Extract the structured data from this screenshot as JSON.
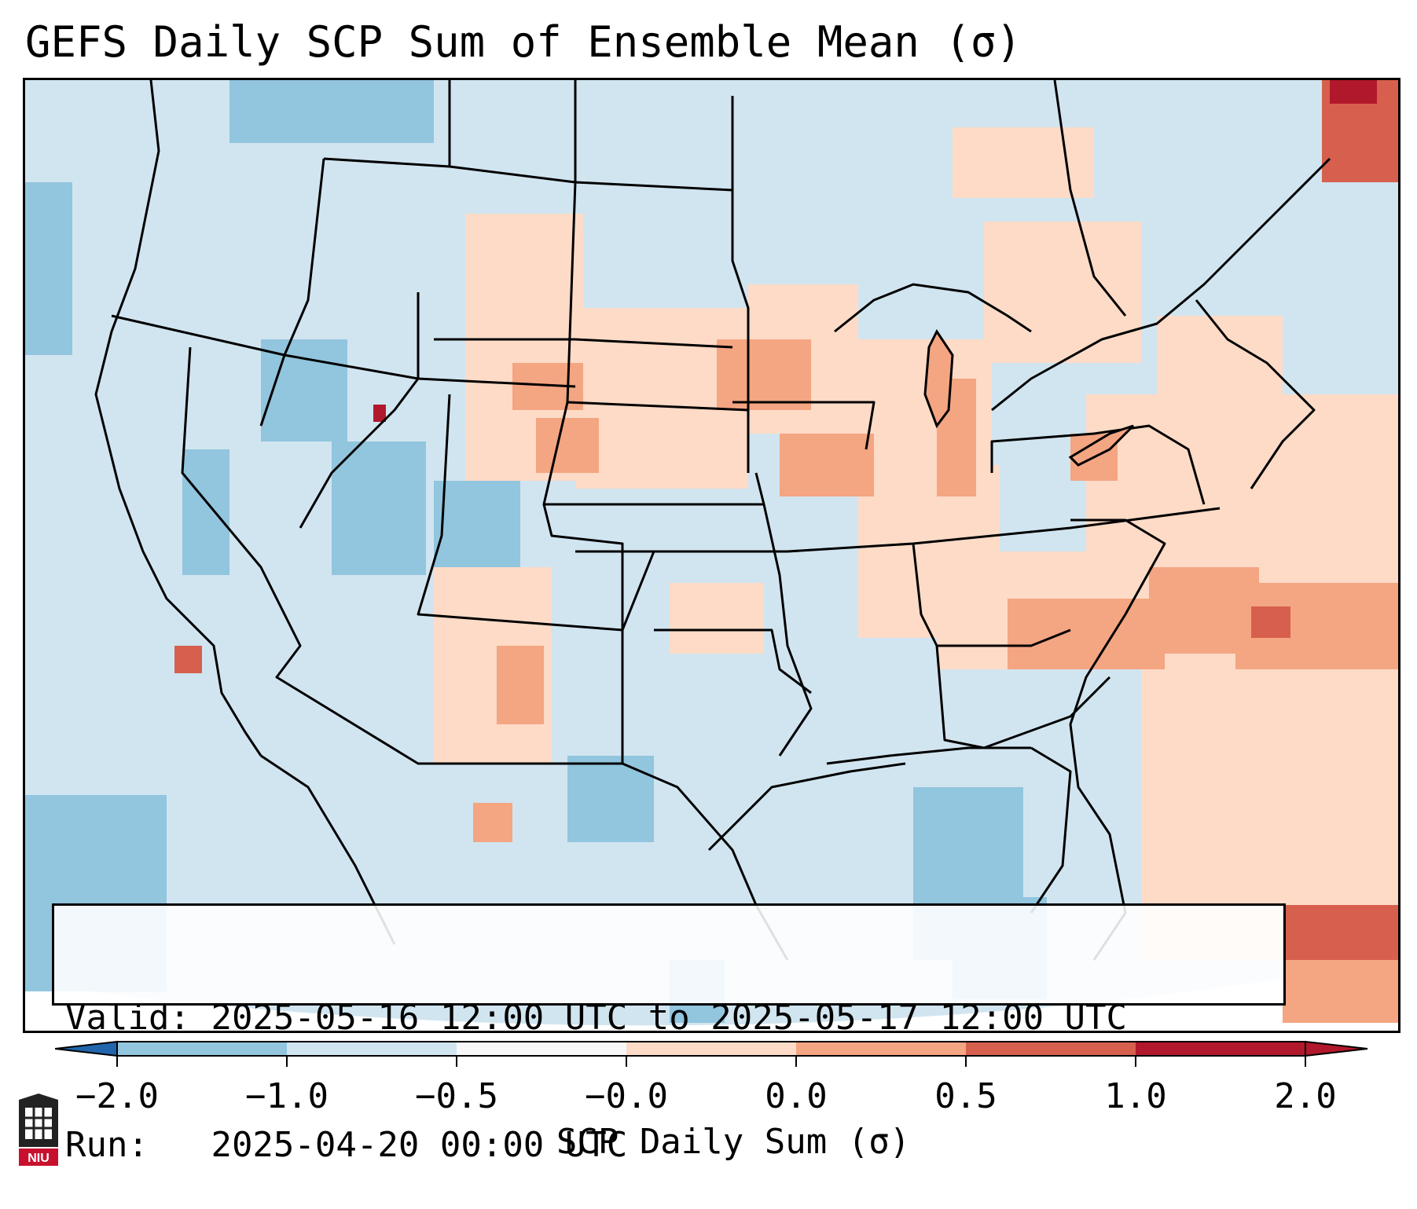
{
  "title": "GEFS Daily SCP Sum of Ensemble Mean (σ)",
  "valid_label": "Valid:",
  "valid_text": "2025-05-16 12:00 UTC to 2025-05-17 12:00 UTC",
  "run_label": "Run:",
  "run_text": "2025-04-20 00:00 UTC",
  "colorbar": {
    "ticks": [
      "−2.0",
      "−1.0",
      "−0.5",
      "−0.0",
      "0.0",
      "0.5",
      "1.0",
      "2.0"
    ],
    "label": "SCP Daily Sum (σ)",
    "colors": [
      "#4393c3",
      "#92c5de",
      "#d1e5f0",
      "#f7f7f7",
      "#fddbc7",
      "#f4a582",
      "#d6604d",
      "#b2182b"
    ]
  },
  "logo": {
    "icon": "niu-logo-icon",
    "text": "NIU"
  },
  "map": {
    "region": "CONUS",
    "background_class": "-0.5 to -0.0",
    "features": [
      "state boundaries",
      "coastlines",
      "Great Lakes"
    ]
  }
}
